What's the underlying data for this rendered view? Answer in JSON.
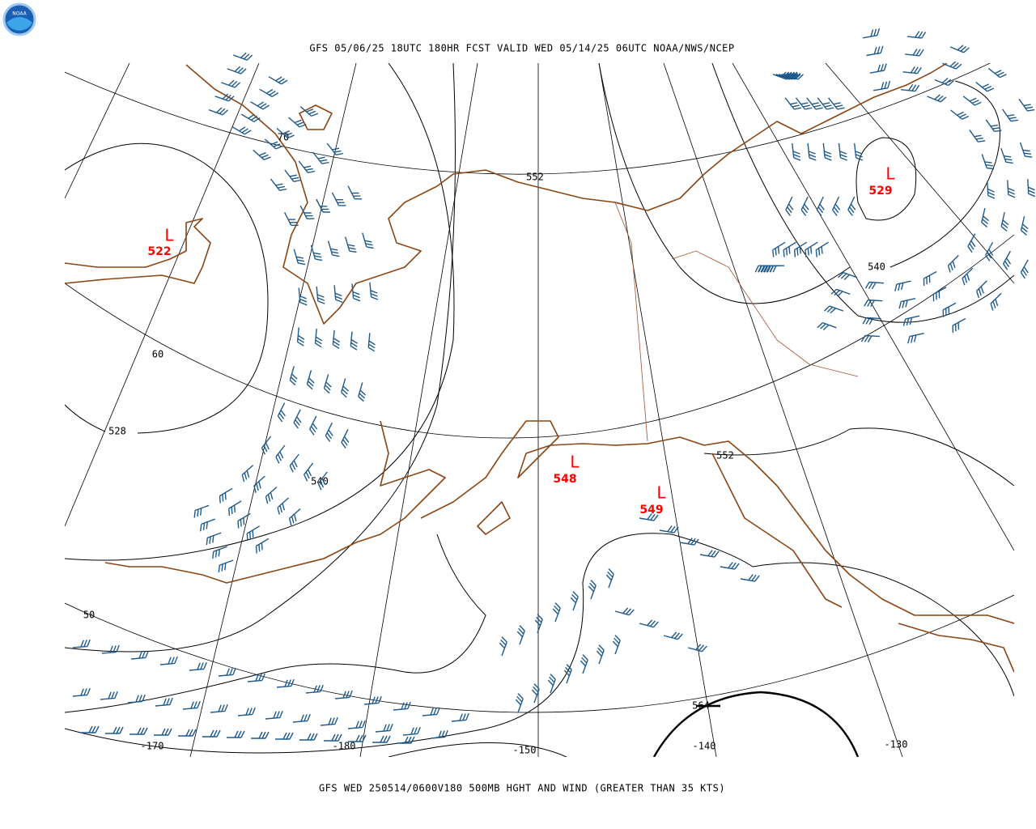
{
  "logo": {
    "label": "NOAA"
  },
  "header": {
    "title": "GFS 05/06/25 18UTC 180HR FCST VALID WED 05/14/25 06UTC NOAA/NWS/NCEP"
  },
  "map": {
    "lows": [
      {
        "symbol": "L",
        "value": 522
      },
      {
        "symbol": "L",
        "value": 529
      },
      {
        "symbol": "L",
        "value": 548
      },
      {
        "symbol": "L",
        "value": 549
      }
    ],
    "height_contour_labels": [
      552,
      540,
      528,
      540,
      552,
      564
    ],
    "latitude_labels": [
      70,
      60,
      50
    ],
    "longitude_labels": [
      -170,
      -180,
      -150,
      -140,
      -130
    ]
  },
  "footer": {
    "caption": "GFS WED 250514/0600V180 500MB HGHT AND WIND (GREATER THAN 35 KTS)"
  }
}
